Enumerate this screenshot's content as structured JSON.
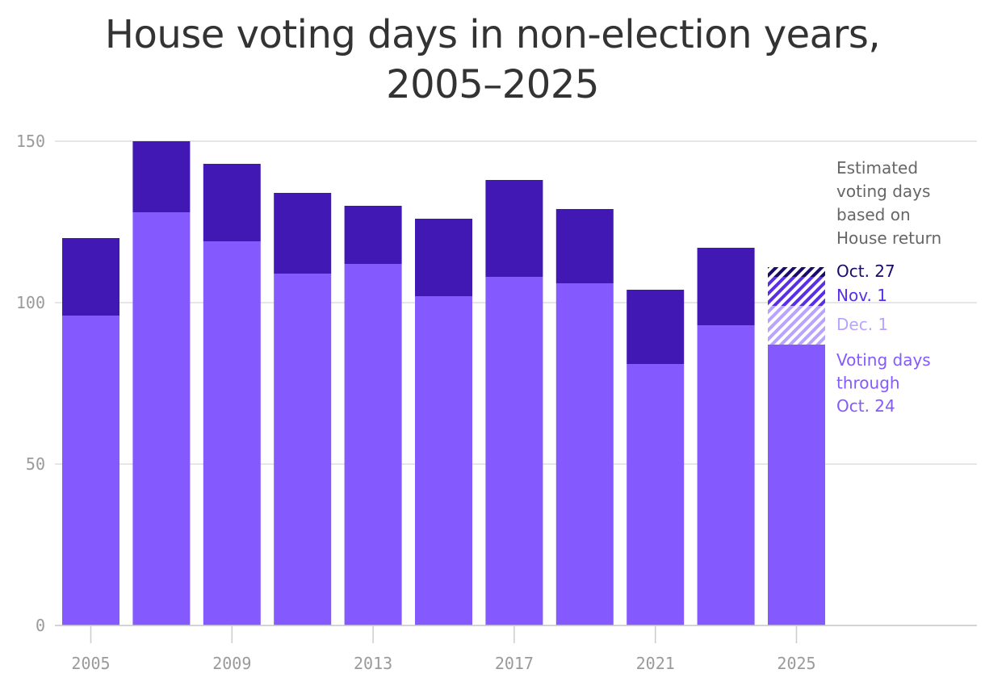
{
  "chart_data": {
    "type": "bar",
    "title_lines": [
      "House voting days in non-election years,",
      "2005–2025"
    ],
    "xlabel": "",
    "ylabel": "",
    "ylim": [
      0,
      150
    ],
    "y_ticks": [
      0,
      50,
      100,
      150
    ],
    "x_tick_labels": [
      "2005",
      "2009",
      "2013",
      "2017",
      "2021",
      "2025"
    ],
    "grid": true,
    "categories": [
      "2005",
      "2007",
      "2009",
      "2011",
      "2013",
      "2015",
      "2017",
      "2019",
      "2021",
      "2023"
    ],
    "series": [
      {
        "values": [
          96,
          128,
          119,
          109,
          112,
          102,
          108,
          106,
          81,
          93
        ]
      },
      {
        "values": [
          24,
          22,
          24,
          25,
          18,
          24,
          30,
          23,
          23,
          24
        ]
      }
    ],
    "estimate_2025": {
      "category": "2025",
      "through_oct_24": 87,
      "dec_1": 99,
      "nov_1": 108,
      "oct_27": 111
    },
    "legend": {
      "heading": [
        "Estimated",
        "voting days",
        "based on",
        "House return"
      ],
      "oct27": "Oct. 27",
      "nov1": "Nov. 1",
      "dec1": "Dec. 1",
      "voting_days": [
        "Voting days",
        "through",
        "Oct. 24"
      ]
    },
    "colors": {
      "base": "#845aff",
      "top": "#4118b3",
      "oct27": "#1c0a6b",
      "nov1": "#5a2ee6",
      "dec1": "#b8a3ff",
      "grid": "#dddddd",
      "tick": "#9a9a9a",
      "title": "#333333",
      "legend_heading": "#666666"
    }
  }
}
